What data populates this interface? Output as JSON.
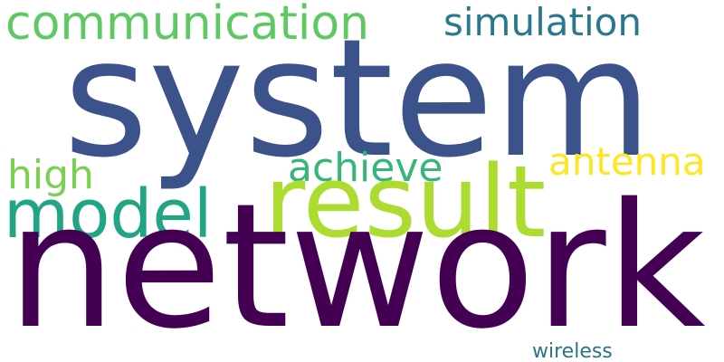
{
  "words": {
    "system": {
      "text": "system",
      "color": "#3b528b"
    },
    "network": {
      "text": "network",
      "color": "#440154"
    },
    "result": {
      "text": "result",
      "color": "#addc30"
    },
    "communication": {
      "text": "communication",
      "color": "#5ec962"
    },
    "simulation": {
      "text": "simulation",
      "color": "#2a788e"
    },
    "model": {
      "text": "model",
      "color": "#21a585"
    },
    "high": {
      "text": "high",
      "color": "#7ad151"
    },
    "achieve": {
      "text": "achieve",
      "color": "#35b779"
    },
    "antenna": {
      "text": "antenna",
      "color": "#fde725"
    },
    "wireless": {
      "text": "wireless",
      "color": "#2c728e"
    }
  }
}
